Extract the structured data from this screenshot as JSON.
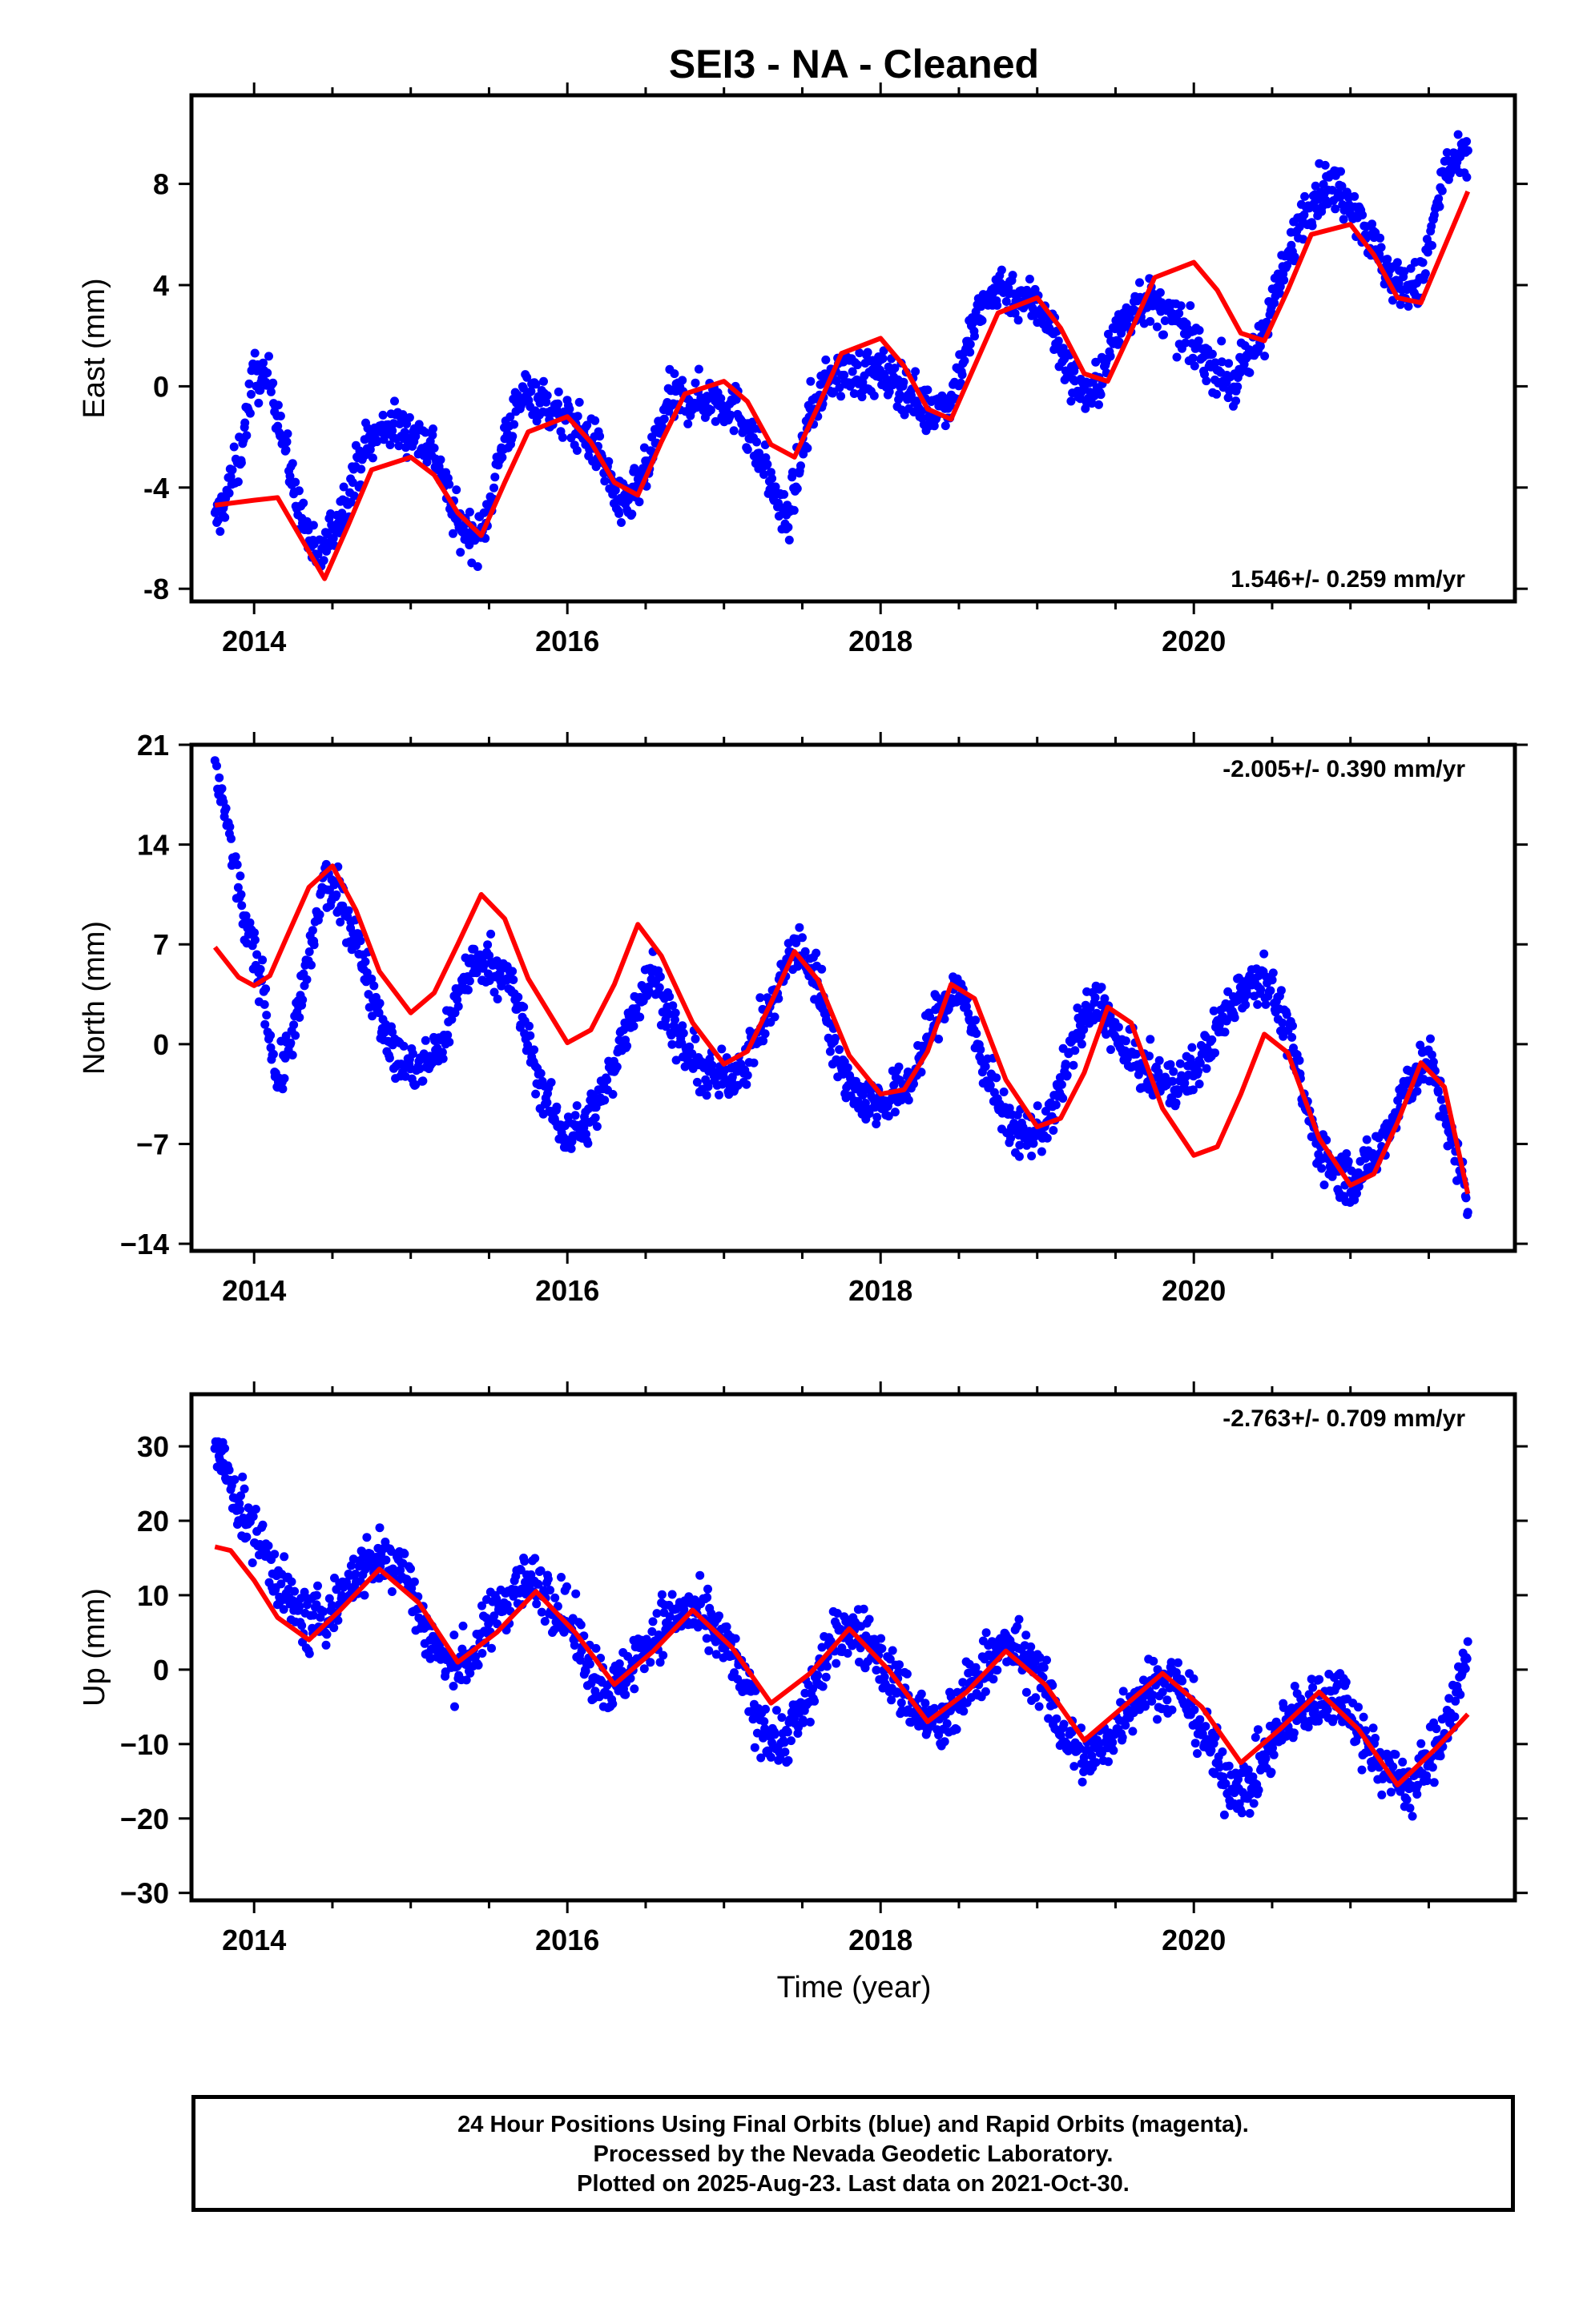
{
  "title": "SEI3  - NA - Cleaned",
  "xlabel": "Time (year)",
  "footer": {
    "line1": "24 Hour Positions Using Final Orbits (blue) and Rapid Orbits (magenta).",
    "line2": "Processed by the Nevada Geodetic Laboratory.",
    "line3": "Plotted on 2025-Aug-23. Last data on 2021-Oct-30."
  },
  "colors": {
    "final_orbits": "#0000ff",
    "model_fit": "#ff0000",
    "frame": "#000000"
  },
  "chart_data": [
    {
      "type": "scatter",
      "ylabel": "East (mm)",
      "rate": "1.546+/- 0.259 mm/yr",
      "rate_position": "bottom-right",
      "xlim": [
        2013.6,
        2022.05
      ],
      "ylim": [
        -8.5,
        11.5
      ],
      "xticks": [
        2014,
        2016,
        2018,
        2020
      ],
      "yticks": [
        -8,
        -4,
        0,
        4,
        8
      ],
      "grid": false,
      "series": [
        {
          "name": "Final Orbits",
          "style": "points",
          "x": [
            2013.75,
            2013.9,
            2014.0,
            2014.12,
            2014.25,
            2014.4,
            2014.55,
            2014.7,
            2014.85,
            2015.0,
            2015.15,
            2015.3,
            2015.45,
            2015.6,
            2015.75,
            2015.9,
            2016.05,
            2016.2,
            2016.35,
            2016.5,
            2016.65,
            2016.8,
            2016.95,
            2017.1,
            2017.25,
            2017.4,
            2017.55,
            2017.7,
            2017.85,
            2018.0,
            2018.15,
            2018.3,
            2018.45,
            2018.6,
            2018.75,
            2018.9,
            2019.05,
            2019.2,
            2019.35,
            2019.5,
            2019.65,
            2019.8,
            2019.95,
            2020.1,
            2020.25,
            2020.4,
            2020.55,
            2020.7,
            2020.85,
            2021.0,
            2021.15,
            2021.3,
            2021.45,
            2021.6,
            2021.75
          ],
          "y": [
            -5.5,
            -3.0,
            0.5,
            0.0,
            -4.0,
            -7.0,
            -5.0,
            -2.5,
            -1.5,
            -1.8,
            -2.5,
            -5.5,
            -6.0,
            -2.0,
            0.0,
            -1.0,
            -1.5,
            -2.5,
            -5.0,
            -3.5,
            -0.5,
            -0.5,
            -0.5,
            -1.0,
            -3.0,
            -5.5,
            -1.0,
            0.5,
            0.5,
            0.5,
            0.0,
            -1.0,
            -0.5,
            2.5,
            4.0,
            3.5,
            3.0,
            0.5,
            -0.5,
            2.0,
            3.5,
            3.0,
            2.0,
            1.0,
            0.0,
            1.5,
            4.0,
            7.0,
            8.0,
            7.5,
            5.5,
            4.0,
            4.0,
            8.5,
            9.0
          ]
        },
        {
          "name": "Model",
          "style": "line",
          "x": [
            2013.75,
            2014.0,
            2014.15,
            2014.3,
            2014.45,
            2014.6,
            2014.75,
            2015.0,
            2015.15,
            2015.3,
            2015.45,
            2015.6,
            2015.75,
            2016.0,
            2016.15,
            2016.3,
            2016.45,
            2016.6,
            2016.75,
            2017.0,
            2017.15,
            2017.3,
            2017.45,
            2017.6,
            2017.75,
            2018.0,
            2018.15,
            2018.3,
            2018.45,
            2018.6,
            2018.75,
            2019.0,
            2019.15,
            2019.3,
            2019.45,
            2019.6,
            2019.75,
            2020.0,
            2020.15,
            2020.3,
            2020.45,
            2020.6,
            2020.75,
            2021.0,
            2021.15,
            2021.3,
            2021.45,
            2021.6,
            2021.75
          ],
          "y": [
            -4.7,
            -4.5,
            -4.4,
            -6.0,
            -7.6,
            -5.5,
            -3.3,
            -2.8,
            -3.5,
            -5.0,
            -5.9,
            -3.8,
            -1.8,
            -1.2,
            -2.2,
            -3.8,
            -4.3,
            -2.2,
            -0.3,
            0.2,
            -0.6,
            -2.3,
            -2.8,
            -0.8,
            1.3,
            1.9,
            0.8,
            -0.9,
            -1.3,
            0.8,
            2.9,
            3.5,
            2.3,
            0.5,
            0.2,
            2.2,
            4.3,
            4.9,
            3.8,
            2.1,
            1.8,
            3.8,
            6.0,
            6.4,
            5.2,
            3.5,
            3.3,
            5.5,
            7.7
          ]
        }
      ]
    },
    {
      "type": "scatter",
      "ylabel": "North (mm)",
      "rate": "-2.005+/- 0.390 mm/yr",
      "rate_position": "top-right",
      "xlim": [
        2013.6,
        2022.05
      ],
      "ylim": [
        -14.5,
        21
      ],
      "xticks": [
        2014,
        2016,
        2018,
        2020
      ],
      "yticks": [
        21,
        14,
        7,
        0,
        -7,
        -14
      ],
      "ytick_labels": [
        "21",
        "14",
        "7",
        "0",
        "−7",
        "−14"
      ],
      "grid": false,
      "series": [
        {
          "name": "Final Orbits",
          "style": "points",
          "x": [
            2013.75,
            2013.85,
            2013.95,
            2014.05,
            2014.15,
            2014.3,
            2014.45,
            2014.6,
            2014.75,
            2014.9,
            2015.05,
            2015.2,
            2015.35,
            2015.5,
            2015.65,
            2015.8,
            2015.95,
            2016.1,
            2016.25,
            2016.4,
            2016.55,
            2016.7,
            2016.85,
            2017.0,
            2017.15,
            2017.3,
            2017.45,
            2017.6,
            2017.75,
            2017.9,
            2018.05,
            2018.2,
            2018.35,
            2018.5,
            2018.65,
            2018.8,
            2018.95,
            2019.1,
            2019.25,
            2019.4,
            2019.55,
            2019.7,
            2019.85,
            2020.0,
            2020.15,
            2020.3,
            2020.45,
            2020.6,
            2020.75,
            2020.9,
            2021.05,
            2021.2,
            2021.35,
            2021.5,
            2021.65,
            2021.75
          ],
          "y": [
            20.0,
            14.0,
            8.0,
            4.5,
            -3.0,
            3.0,
            11.5,
            9.0,
            4.0,
            -1.0,
            -2.0,
            0.0,
            5.0,
            6.0,
            4.0,
            -2.0,
            -6.0,
            -6.0,
            -3.0,
            2.0,
            5.0,
            0.5,
            -2.0,
            -2.5,
            -1.0,
            2.5,
            7.0,
            4.5,
            -2.0,
            -4.0,
            -4.0,
            -2.5,
            2.0,
            4.0,
            -1.0,
            -5.5,
            -6.5,
            -5.0,
            1.0,
            3.0,
            -0.5,
            -2.0,
            -3.0,
            -2.0,
            1.0,
            4.0,
            5.0,
            1.0,
            -6.0,
            -9.0,
            -9.5,
            -7.0,
            -3.0,
            -1.0,
            -7.0,
            -11.0
          ]
        },
        {
          "name": "Model",
          "style": "line",
          "x": [
            2013.75,
            2013.9,
            2014.0,
            2014.1,
            2014.2,
            2014.35,
            2014.5,
            2014.65,
            2014.8,
            2015.0,
            2015.15,
            2015.3,
            2015.45,
            2015.6,
            2015.75,
            2016.0,
            2016.15,
            2016.3,
            2016.45,
            2016.6,
            2016.8,
            2017.0,
            2017.15,
            2017.3,
            2017.45,
            2017.6,
            2017.8,
            2018.0,
            2018.15,
            2018.3,
            2018.45,
            2018.6,
            2018.8,
            2019.0,
            2019.15,
            2019.3,
            2019.45,
            2019.6,
            2019.8,
            2020.0,
            2020.15,
            2020.3,
            2020.45,
            2020.6,
            2020.8,
            2021.0,
            2021.15,
            2021.3,
            2021.45,
            2021.6,
            2021.75
          ],
          "y": [
            6.8,
            4.7,
            4.1,
            4.8,
            7.3,
            11.0,
            12.5,
            9.4,
            5.1,
            2.2,
            3.6,
            7.0,
            10.5,
            8.8,
            4.6,
            0.1,
            1.0,
            4.2,
            8.4,
            6.2,
            1.5,
            -1.4,
            -0.5,
            2.9,
            6.5,
            4.5,
            -0.8,
            -3.5,
            -3.2,
            -0.5,
            4.2,
            3.2,
            -2.5,
            -5.8,
            -5.2,
            -2.0,
            2.6,
            1.5,
            -4.5,
            -7.8,
            -7.2,
            -3.5,
            0.7,
            -0.6,
            -6.6,
            -9.9,
            -9.1,
            -5.5,
            -1.3,
            -3.0,
            -10.5
          ]
        }
      ]
    },
    {
      "type": "scatter",
      "ylabel": "Up (mm)",
      "rate": "-2.763+/- 0.709 mm/yr",
      "rate_position": "top-right",
      "xlim": [
        2013.6,
        2022.05
      ],
      "ylim": [
        -31,
        37
      ],
      "xticks": [
        2014,
        2016,
        2018,
        2020
      ],
      "yticks": [
        30,
        20,
        10,
        0,
        -10,
        -20,
        -30
      ],
      "ytick_labels": [
        "30",
        "20",
        "10",
        "0",
        "−10",
        "−20",
        "−30"
      ],
      "grid": false,
      "series": [
        {
          "name": "Final Orbits",
          "style": "points",
          "x": [
            2013.75,
            2013.85,
            2013.95,
            2014.05,
            2014.2,
            2014.35,
            2014.5,
            2014.65,
            2014.8,
            2014.95,
            2015.1,
            2015.25,
            2015.4,
            2015.55,
            2015.7,
            2015.85,
            2016.0,
            2016.15,
            2016.3,
            2016.45,
            2016.6,
            2016.75,
            2016.9,
            2017.05,
            2017.2,
            2017.35,
            2017.5,
            2017.65,
            2017.8,
            2017.95,
            2018.1,
            2018.25,
            2018.4,
            2018.55,
            2018.7,
            2018.85,
            2019.0,
            2019.15,
            2019.3,
            2019.45,
            2019.6,
            2019.75,
            2019.9,
            2020.05,
            2020.2,
            2020.35,
            2020.5,
            2020.65,
            2020.8,
            2020.95,
            2021.1,
            2021.25,
            2021.4,
            2021.55,
            2021.7,
            2021.75
          ],
          "y": [
            30.0,
            25.0,
            20.0,
            17.0,
            10.0,
            6.0,
            8.0,
            13.0,
            15.0,
            14.0,
            5.0,
            0.0,
            2.0,
            8.0,
            12.0,
            11.0,
            7.0,
            0.0,
            -3.0,
            2.0,
            6.0,
            8.0,
            6.0,
            2.0,
            -6.0,
            -10.0,
            -6.0,
            2.0,
            6.0,
            3.0,
            -2.0,
            -6.0,
            -8.0,
            -3.0,
            2.0,
            3.0,
            0.0,
            -8.0,
            -12.0,
            -10.0,
            -4.0,
            -2.0,
            -2.0,
            -8.0,
            -15.0,
            -16.0,
            -10.0,
            -6.0,
            -4.0,
            -3.0,
            -10.0,
            -14.0,
            -16.0,
            -10.0,
            -2.0,
            2.0
          ]
        },
        {
          "name": "Model",
          "style": "line",
          "x": [
            2013.75,
            2013.85,
            2014.0,
            2014.15,
            2014.35,
            2014.55,
            2014.8,
            2015.05,
            2015.3,
            2015.55,
            2015.8,
            2016.05,
            2016.3,
            2016.55,
            2016.8,
            2017.05,
            2017.3,
            2017.55,
            2017.8,
            2018.05,
            2018.3,
            2018.55,
            2018.8,
            2019.05,
            2019.3,
            2019.55,
            2019.8,
            2020.05,
            2020.3,
            2020.55,
            2020.8,
            2021.05,
            2021.3,
            2021.55,
            2021.75
          ],
          "y": [
            16.5,
            16.0,
            12.0,
            7.0,
            4.0,
            8.0,
            13.5,
            9.0,
            1.0,
            5.0,
            10.5,
            5.0,
            -2.0,
            2.5,
            8.0,
            3.0,
            -4.5,
            -0.5,
            5.5,
            0.0,
            -7.0,
            -3.0,
            2.5,
            -2.0,
            -9.5,
            -5.0,
            -0.5,
            -5.0,
            -12.5,
            -8.0,
            -3.0,
            -8.0,
            -15.5,
            -10.5,
            -6.0
          ]
        }
      ]
    }
  ]
}
